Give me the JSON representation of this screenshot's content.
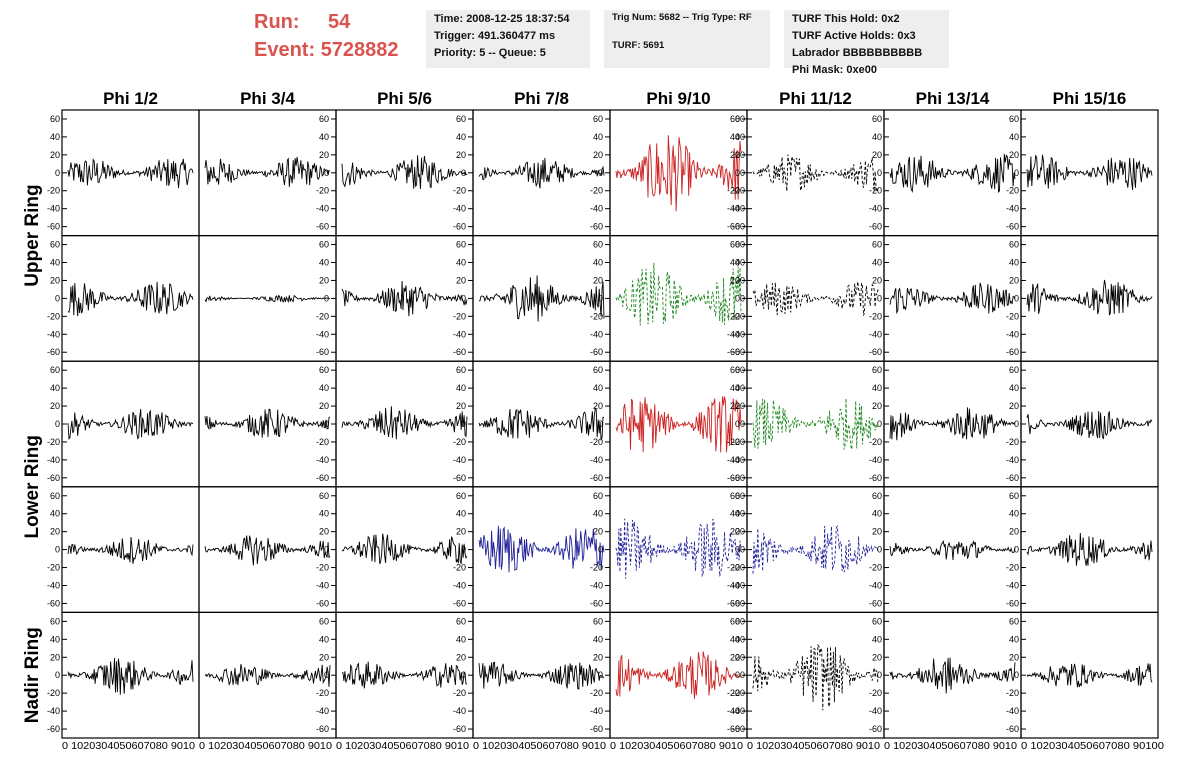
{
  "header": {
    "run_label": "Run:",
    "run_value": "54",
    "event_label": "Event:",
    "event_value": "5728882",
    "time": "Time: 2008-12-25 18:37:54",
    "trigger": "Trigger: 491.360477 ms",
    "priority": "Priority: 5 -- Queue: 5",
    "trig_num": "Trig Num: 5682 -- Trig Type: RF",
    "turf": "TURF: 5691",
    "turf_this_hold": "TURF This Hold: 0x2",
    "turf_active_holds": "TURF Active Holds: 0x3",
    "labrador": "Labrador BBBBBBBBBB",
    "phi_mask": "Phi Mask: 0xe00"
  },
  "colors": {
    "black": "#000000",
    "red": "#cc2222",
    "green": "#228822",
    "blue": "#222299",
    "header_red": "#d9534f",
    "box_bg": "#eeeeee"
  },
  "chart_data": {
    "type": "line",
    "title": "",
    "columns": [
      "Phi 1/2",
      "Phi 3/4",
      "Phi 5/6",
      "Phi 7/8",
      "Phi 9/10",
      "Phi 11/12",
      "Phi 13/14",
      "Phi 15/16"
    ],
    "row_groups": [
      {
        "label": "Upper Ring",
        "rows": [
          0,
          1
        ]
      },
      {
        "label": "Lower Ring",
        "rows": [
          2,
          3
        ]
      },
      {
        "label": "Nadir Ring",
        "rows": [
          4
        ]
      }
    ],
    "ylim": [
      -70,
      70
    ],
    "xlim": [
      0,
      100
    ],
    "y_ticks": [
      60,
      40,
      20,
      0,
      -20,
      -40,
      -60
    ],
    "y_tick_labels": [
      "60",
      "40",
      "20",
      "0",
      "-20",
      "-40",
      "-60"
    ],
    "x_ticks": [
      0,
      10,
      20,
      30,
      40,
      50,
      60,
      70,
      80,
      90,
      100
    ],
    "x_tick_label_string": "0 10 20 30 40 50 60 70 80 90 100",
    "panel_x_label_strings": [
      "0 1020304050607080 9010",
      "0 1020304050607080 9010",
      "0 1020304050607080 9010",
      "0 1020304050607080 9010",
      "0 1020304050607080 9010",
      "0 1020304050607080 9010",
      "0 1020304050607080 9010",
      "0 1020304050607080 90100"
    ],
    "panels": [
      [
        {
          "amp": 18,
          "color": "black",
          "dash": false
        },
        {
          "amp": 18,
          "color": "black",
          "dash": false
        },
        {
          "amp": 20,
          "color": "black",
          "dash": false
        },
        {
          "amp": 18,
          "color": "black",
          "dash": false
        },
        {
          "amp": 48,
          "color": "red",
          "dash": false
        },
        {
          "amp": 22,
          "color": "black",
          "dash": true
        },
        {
          "amp": 22,
          "color": "black",
          "dash": false
        },
        {
          "amp": 22,
          "color": "black",
          "dash": false
        }
      ],
      [
        {
          "amp": 20,
          "color": "black",
          "dash": false
        },
        {
          "amp": 4,
          "color": "black",
          "dash": false
        },
        {
          "amp": 20,
          "color": "black",
          "dash": false
        },
        {
          "amp": 28,
          "color": "black",
          "dash": false
        },
        {
          "amp": 40,
          "color": "green",
          "dash": true
        },
        {
          "amp": 20,
          "color": "black",
          "dash": true
        },
        {
          "amp": 18,
          "color": "black",
          "dash": false
        },
        {
          "amp": 22,
          "color": "black",
          "dash": false
        }
      ],
      [
        {
          "amp": 18,
          "color": "black",
          "dash": false
        },
        {
          "amp": 18,
          "color": "black",
          "dash": false
        },
        {
          "amp": 20,
          "color": "black",
          "dash": false
        },
        {
          "amp": 20,
          "color": "black",
          "dash": false
        },
        {
          "amp": 34,
          "color": "red",
          "dash": false
        },
        {
          "amp": 30,
          "color": "green",
          "dash": true
        },
        {
          "amp": 20,
          "color": "black",
          "dash": false
        },
        {
          "amp": 18,
          "color": "black",
          "dash": false
        }
      ],
      [
        {
          "amp": 16,
          "color": "black",
          "dash": false
        },
        {
          "amp": 18,
          "color": "black",
          "dash": false
        },
        {
          "amp": 18,
          "color": "black",
          "dash": false
        },
        {
          "amp": 30,
          "color": "blue",
          "dash": false
        },
        {
          "amp": 36,
          "color": "blue",
          "dash": true
        },
        {
          "amp": 32,
          "color": "blue",
          "dash": true
        },
        {
          "amp": 14,
          "color": "black",
          "dash": false
        },
        {
          "amp": 20,
          "color": "black",
          "dash": false
        }
      ],
      [
        {
          "amp": 22,
          "color": "black",
          "dash": false
        },
        {
          "amp": 14,
          "color": "black",
          "dash": false
        },
        {
          "amp": 16,
          "color": "black",
          "dash": false
        },
        {
          "amp": 16,
          "color": "black",
          "dash": false
        },
        {
          "amp": 28,
          "color": "red",
          "dash": false
        },
        {
          "amp": 40,
          "color": "black",
          "dash": true
        },
        {
          "amp": 22,
          "color": "black",
          "dash": false
        },
        {
          "amp": 16,
          "color": "black",
          "dash": false
        }
      ]
    ]
  }
}
